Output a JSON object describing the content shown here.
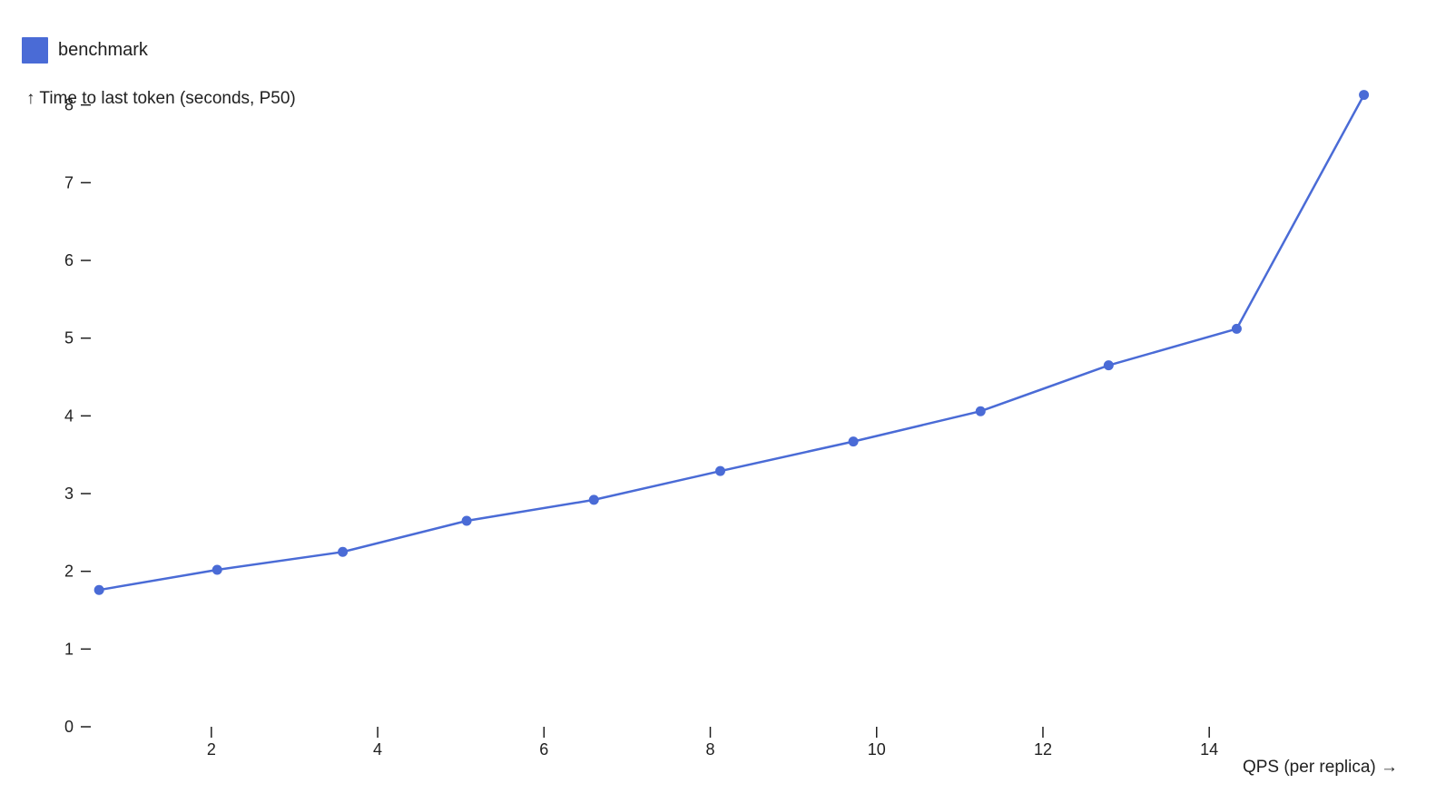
{
  "chart_data": {
    "type": "line",
    "title": "",
    "xlabel": "QPS (per replica) →",
    "ylabel": "↑ Time to last token (seconds, P50)",
    "x_ticks": [
      2,
      4,
      6,
      8,
      10,
      12,
      14
    ],
    "y_ticks": [
      0,
      1,
      2,
      3,
      4,
      5,
      6,
      7,
      8
    ],
    "xlim": [
      0.55,
      16.05
    ],
    "ylim": [
      0,
      8.3
    ],
    "grid": false,
    "legend_position": "top-left",
    "series": [
      {
        "name": "benchmark",
        "color": "#4a6bd6",
        "points": [
          {
            "x": 0.65,
            "y": 1.76
          },
          {
            "x": 2.07,
            "y": 2.02
          },
          {
            "x": 3.58,
            "y": 2.25
          },
          {
            "x": 5.07,
            "y": 2.65
          },
          {
            "x": 6.6,
            "y": 2.92
          },
          {
            "x": 8.12,
            "y": 3.29
          },
          {
            "x": 9.72,
            "y": 3.67
          },
          {
            "x": 11.25,
            "y": 4.06
          },
          {
            "x": 12.79,
            "y": 4.65
          },
          {
            "x": 14.33,
            "y": 5.12
          },
          {
            "x": 15.86,
            "y": 8.13
          }
        ]
      }
    ]
  }
}
